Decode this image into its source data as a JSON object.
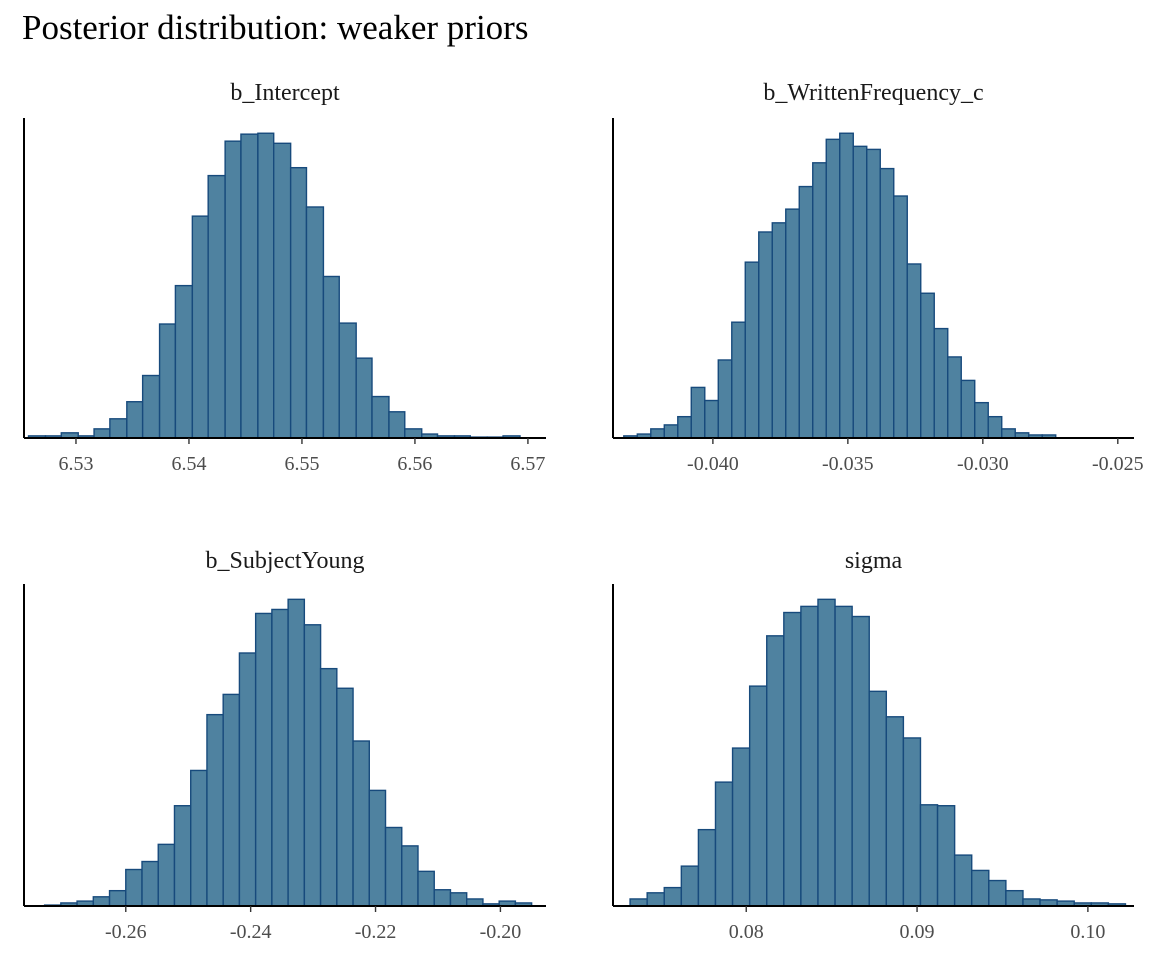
{
  "title": "Posterior distribution: weaker priors",
  "chart_data": [
    {
      "type": "bar",
      "title": "b_Intercept",
      "xlim": [
        6.5254,
        6.5716
      ],
      "ylim": [
        0,
        105
      ],
      "xticks": [
        6.53,
        6.54,
        6.55,
        6.56,
        6.57
      ],
      "xtick_labels": [
        "6.53",
        "6.54",
        "6.55",
        "6.56",
        "6.57"
      ],
      "bins": [
        {
          "x0": 6.5258,
          "x1": 6.5273,
          "count": 0.7
        },
        {
          "x0": 6.5273,
          "x1": 6.5287,
          "count": 0.7
        },
        {
          "x0": 6.5287,
          "x1": 6.5302,
          "count": 1.7
        },
        {
          "x0": 6.5302,
          "x1": 6.5316,
          "count": 0.7
        },
        {
          "x0": 6.5316,
          "x1": 6.533,
          "count": 3.0
        },
        {
          "x0": 6.533,
          "x1": 6.5345,
          "count": 6.3
        },
        {
          "x0": 6.5345,
          "x1": 6.5359,
          "count": 11.9
        },
        {
          "x0": 6.5359,
          "x1": 6.5374,
          "count": 20.5
        },
        {
          "x0": 6.5374,
          "x1": 6.5388,
          "count": 37.4
        },
        {
          "x0": 6.5388,
          "x1": 6.5403,
          "count": 50.0
        },
        {
          "x0": 6.5403,
          "x1": 6.5417,
          "count": 72.8
        },
        {
          "x0": 6.5417,
          "x1": 6.5432,
          "count": 86.1
        },
        {
          "x0": 6.5432,
          "x1": 6.5446,
          "count": 97.4
        },
        {
          "x0": 6.5446,
          "x1": 6.5461,
          "count": 99.7
        },
        {
          "x0": 6.5461,
          "x1": 6.5475,
          "count": 100.0
        },
        {
          "x0": 6.5475,
          "x1": 6.549,
          "count": 96.7
        },
        {
          "x0": 6.549,
          "x1": 6.5504,
          "count": 88.7
        },
        {
          "x0": 6.5504,
          "x1": 6.5519,
          "count": 75.8
        },
        {
          "x0": 6.5519,
          "x1": 6.5533,
          "count": 53.0
        },
        {
          "x0": 6.5533,
          "x1": 6.5548,
          "count": 37.7
        },
        {
          "x0": 6.5548,
          "x1": 6.5562,
          "count": 26.2
        },
        {
          "x0": 6.5562,
          "x1": 6.5577,
          "count": 13.6
        },
        {
          "x0": 6.5577,
          "x1": 6.5591,
          "count": 8.6
        },
        {
          "x0": 6.5591,
          "x1": 6.5606,
          "count": 3.0
        },
        {
          "x0": 6.5606,
          "x1": 6.562,
          "count": 1.3
        },
        {
          "x0": 6.562,
          "x1": 6.5635,
          "count": 0.7
        },
        {
          "x0": 6.5635,
          "x1": 6.5649,
          "count": 0.7
        },
        {
          "x0": 6.5649,
          "x1": 6.5664,
          "count": 0.3
        },
        {
          "x0": 6.5664,
          "x1": 6.5678,
          "count": 0.3
        },
        {
          "x0": 6.5678,
          "x1": 6.5693,
          "count": 0.7
        }
      ]
    },
    {
      "type": "bar",
      "title": "b_WrittenFrequency_c",
      "xlim": [
        -0.0437,
        -0.0244
      ],
      "ylim": [
        0,
        105
      ],
      "xticks": [
        -0.04,
        -0.035,
        -0.03,
        -0.025
      ],
      "xtick_labels": [
        "-0.040",
        "-0.035",
        "-0.030",
        "-0.025"
      ],
      "bins": [
        {
          "x0": -0.0433,
          "x1": -0.0428,
          "count": 0.7
        },
        {
          "x0": -0.0428,
          "x1": -0.0423,
          "count": 1.3
        },
        {
          "x0": -0.0423,
          "x1": -0.0418,
          "count": 3.0
        },
        {
          "x0": -0.0418,
          "x1": -0.0413,
          "count": 4.3
        },
        {
          "x0": -0.0413,
          "x1": -0.0408,
          "count": 7.0
        },
        {
          "x0": -0.0408,
          "x1": -0.0403,
          "count": 16.6
        },
        {
          "x0": -0.0403,
          "x1": -0.0398,
          "count": 12.3
        },
        {
          "x0": -0.0398,
          "x1": -0.0393,
          "count": 25.6
        },
        {
          "x0": -0.0393,
          "x1": -0.0388,
          "count": 38.0
        },
        {
          "x0": -0.0388,
          "x1": -0.0383,
          "count": 57.7
        },
        {
          "x0": -0.0383,
          "x1": -0.0378,
          "count": 67.6
        },
        {
          "x0": -0.0378,
          "x1": -0.0373,
          "count": 70.6
        },
        {
          "x0": -0.0373,
          "x1": -0.0368,
          "count": 75.1
        },
        {
          "x0": -0.0368,
          "x1": -0.0363,
          "count": 82.5
        },
        {
          "x0": -0.0363,
          "x1": -0.0358,
          "count": 90.3
        },
        {
          "x0": -0.0358,
          "x1": -0.0353,
          "count": 98.0
        },
        {
          "x0": -0.0353,
          "x1": -0.0348,
          "count": 100.0
        },
        {
          "x0": -0.0348,
          "x1": -0.0343,
          "count": 95.7
        },
        {
          "x0": -0.0343,
          "x1": -0.0338,
          "count": 94.7
        },
        {
          "x0": -0.0338,
          "x1": -0.0333,
          "count": 88.4
        },
        {
          "x0": -0.0333,
          "x1": -0.0328,
          "count": 79.4
        },
        {
          "x0": -0.0328,
          "x1": -0.0323,
          "count": 57.1
        },
        {
          "x0": -0.0323,
          "x1": -0.0318,
          "count": 47.5
        },
        {
          "x0": -0.0318,
          "x1": -0.0313,
          "count": 35.9
        },
        {
          "x0": -0.0313,
          "x1": -0.0308,
          "count": 26.6
        },
        {
          "x0": -0.0308,
          "x1": -0.0303,
          "count": 18.9
        },
        {
          "x0": -0.0303,
          "x1": -0.0298,
          "count": 11.6
        },
        {
          "x0": -0.0298,
          "x1": -0.0293,
          "count": 7.0
        },
        {
          "x0": -0.0293,
          "x1": -0.0288,
          "count": 3.0
        },
        {
          "x0": -0.0288,
          "x1": -0.0283,
          "count": 1.7
        },
        {
          "x0": -0.0283,
          "x1": -0.0278,
          "count": 1.0
        },
        {
          "x0": -0.0278,
          "x1": -0.0273,
          "count": 1.0
        }
      ]
    },
    {
      "type": "bar",
      "title": "b_SubjectYoung",
      "xlim": [
        -0.2763,
        -0.1927
      ],
      "ylim": [
        0,
        105
      ],
      "xticks": [
        -0.26,
        -0.24,
        -0.22,
        -0.2
      ],
      "xtick_labels": [
        "-0.26",
        "-0.24",
        "-0.22",
        "-0.20"
      ],
      "bins": [
        {
          "x0": -0.273,
          "x1": -0.2704,
          "count": 0.3
        },
        {
          "x0": -0.2704,
          "x1": -0.2678,
          "count": 1.0
        },
        {
          "x0": -0.2678,
          "x1": -0.2652,
          "count": 1.6
        },
        {
          "x0": -0.2652,
          "x1": -0.2626,
          "count": 3.0
        },
        {
          "x0": -0.2626,
          "x1": -0.26,
          "count": 5.0
        },
        {
          "x0": -0.26,
          "x1": -0.2574,
          "count": 11.9
        },
        {
          "x0": -0.2574,
          "x1": -0.2548,
          "count": 14.5
        },
        {
          "x0": -0.2548,
          "x1": -0.2522,
          "count": 20.1
        },
        {
          "x0": -0.2522,
          "x1": -0.2496,
          "count": 32.7
        },
        {
          "x0": -0.2496,
          "x1": -0.247,
          "count": 44.2
        },
        {
          "x0": -0.247,
          "x1": -0.2444,
          "count": 62.4
        },
        {
          "x0": -0.2444,
          "x1": -0.2418,
          "count": 69.0
        },
        {
          "x0": -0.2418,
          "x1": -0.2392,
          "count": 82.5
        },
        {
          "x0": -0.2392,
          "x1": -0.2366,
          "count": 95.4
        },
        {
          "x0": -0.2366,
          "x1": -0.234,
          "count": 96.7
        },
        {
          "x0": -0.234,
          "x1": -0.2314,
          "count": 100.0
        },
        {
          "x0": -0.2314,
          "x1": -0.2288,
          "count": 91.7
        },
        {
          "x0": -0.2288,
          "x1": -0.2262,
          "count": 77.4
        },
        {
          "x0": -0.2262,
          "x1": -0.2236,
          "count": 71.0
        },
        {
          "x0": -0.2236,
          "x1": -0.221,
          "count": 53.8
        },
        {
          "x0": -0.221,
          "x1": -0.2184,
          "count": 37.7
        },
        {
          "x0": -0.2184,
          "x1": -0.2158,
          "count": 25.6
        },
        {
          "x0": -0.2158,
          "x1": -0.2132,
          "count": 19.6
        },
        {
          "x0": -0.2132,
          "x1": -0.2106,
          "count": 11.3
        },
        {
          "x0": -0.2106,
          "x1": -0.208,
          "count": 5.3
        },
        {
          "x0": -0.208,
          "x1": -0.2054,
          "count": 4.3
        },
        {
          "x0": -0.2054,
          "x1": -0.2028,
          "count": 2.3
        },
        {
          "x0": -0.2028,
          "x1": -0.2002,
          "count": 0.7
        },
        {
          "x0": -0.2002,
          "x1": -0.1976,
          "count": 1.6
        },
        {
          "x0": -0.1976,
          "x1": -0.195,
          "count": 1.0
        }
      ]
    },
    {
      "type": "bar",
      "title": "sigma",
      "xlim": [
        0.0722,
        0.1027
      ],
      "ylim": [
        0,
        105
      ],
      "xticks": [
        0.08,
        0.09,
        0.1
      ],
      "xtick_labels": [
        "0.08",
        "0.09",
        "0.10"
      ],
      "bins": [
        {
          "x0": 0.0732,
          "x1": 0.0742,
          "count": 2.3
        },
        {
          "x0": 0.0742,
          "x1": 0.0752,
          "count": 4.3
        },
        {
          "x0": 0.0752,
          "x1": 0.0762,
          "count": 6.0
        },
        {
          "x0": 0.0762,
          "x1": 0.0772,
          "count": 13.0
        },
        {
          "x0": 0.0772,
          "x1": 0.0782,
          "count": 24.9
        },
        {
          "x0": 0.0782,
          "x1": 0.0792,
          "count": 40.4
        },
        {
          "x0": 0.0792,
          "x1": 0.0802,
          "count": 51.5
        },
        {
          "x0": 0.0802,
          "x1": 0.0812,
          "count": 71.7
        },
        {
          "x0": 0.0812,
          "x1": 0.0822,
          "count": 88.1
        },
        {
          "x0": 0.0822,
          "x1": 0.0832,
          "count": 95.7
        },
        {
          "x0": 0.0832,
          "x1": 0.0842,
          "count": 97.7
        },
        {
          "x0": 0.0842,
          "x1": 0.0852,
          "count": 100.0
        },
        {
          "x0": 0.0852,
          "x1": 0.0862,
          "count": 97.7
        },
        {
          "x0": 0.0862,
          "x1": 0.0872,
          "count": 94.4
        },
        {
          "x0": 0.0872,
          "x1": 0.0882,
          "count": 70.0
        },
        {
          "x0": 0.0882,
          "x1": 0.0892,
          "count": 61.7
        },
        {
          "x0": 0.0892,
          "x1": 0.0902,
          "count": 54.8
        },
        {
          "x0": 0.0902,
          "x1": 0.0912,
          "count": 33.0
        },
        {
          "x0": 0.0912,
          "x1": 0.0922,
          "count": 32.7
        },
        {
          "x0": 0.0922,
          "x1": 0.0932,
          "count": 16.6
        },
        {
          "x0": 0.0932,
          "x1": 0.0942,
          "count": 11.6
        },
        {
          "x0": 0.0942,
          "x1": 0.0952,
          "count": 8.3
        },
        {
          "x0": 0.0952,
          "x1": 0.0962,
          "count": 5.0
        },
        {
          "x0": 0.0962,
          "x1": 0.0972,
          "count": 2.3
        },
        {
          "x0": 0.0972,
          "x1": 0.0982,
          "count": 2.0
        },
        {
          "x0": 0.0982,
          "x1": 0.0992,
          "count": 1.6
        },
        {
          "x0": 0.0992,
          "x1": 0.1002,
          "count": 1.0
        },
        {
          "x0": 0.1002,
          "x1": 0.1012,
          "count": 1.0
        },
        {
          "x0": 0.1012,
          "x1": 0.1022,
          "count": 0.7
        }
      ]
    }
  ]
}
